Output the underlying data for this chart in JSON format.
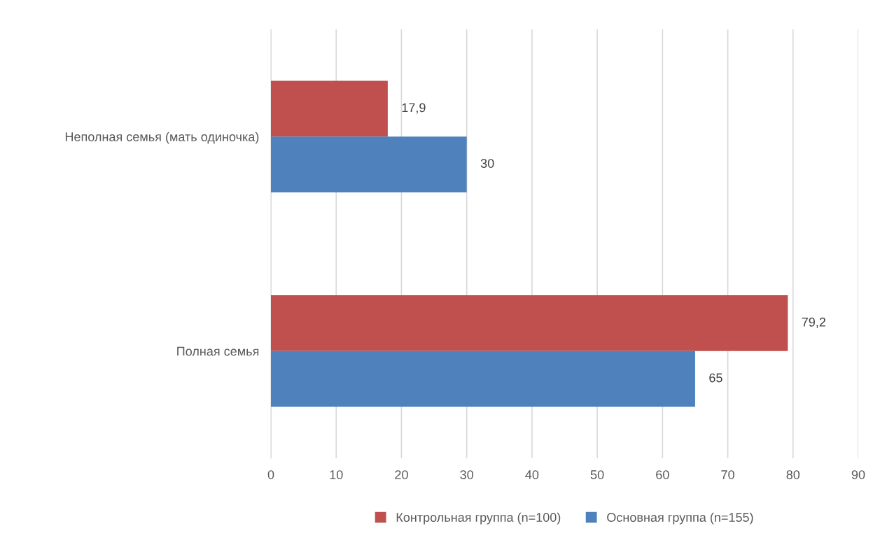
{
  "chart_data": {
    "type": "bar",
    "orientation": "horizontal",
    "categories": [
      "Неполная семья (мать одиночка)",
      "Полная семья"
    ],
    "series": [
      {
        "name": "Контрольная группа (n=100)",
        "color": "#c0504d",
        "values": [
          17.9,
          79.2
        ],
        "value_labels": [
          "17,9",
          "79,2"
        ]
      },
      {
        "name": "Основная группа (n=155)",
        "color": "#4f81bd",
        "values": [
          30,
          65
        ],
        "value_labels": [
          "30",
          "65"
        ]
      }
    ],
    "xlim": [
      0,
      90
    ],
    "xticks": [
      0,
      10,
      20,
      30,
      40,
      50,
      60,
      70,
      80,
      90
    ],
    "grid": "x",
    "legend": "bottom"
  }
}
